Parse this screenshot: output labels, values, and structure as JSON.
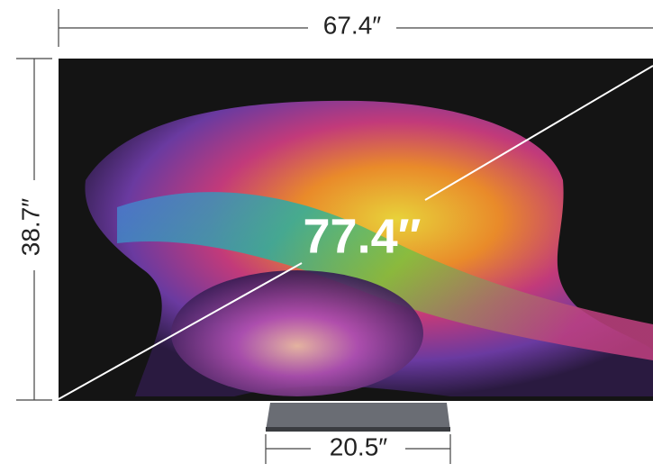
{
  "dimensions": {
    "width": "67.4″",
    "height": "38.7″",
    "diagonal": "77.4″",
    "stand_width": "20.5″"
  }
}
